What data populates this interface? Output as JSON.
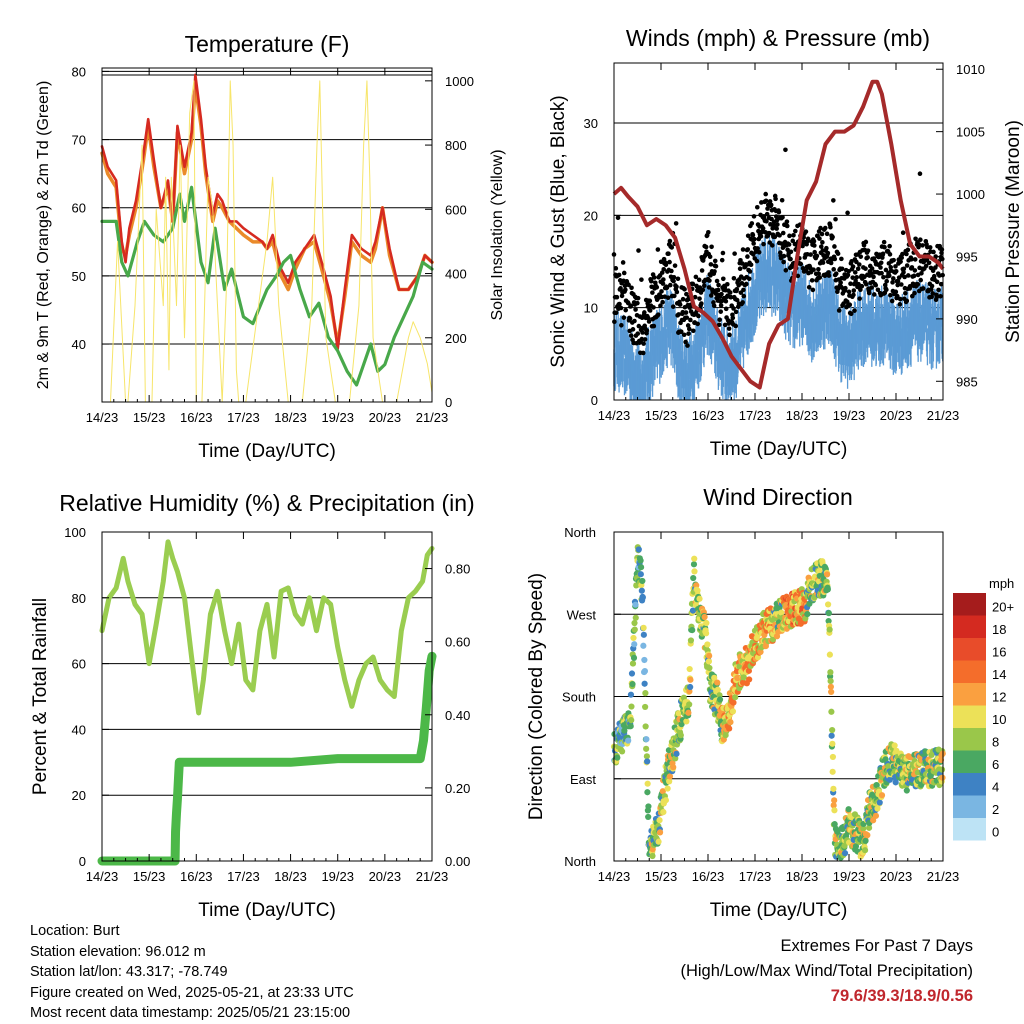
{
  "footer": {
    "location": "Location: Burt",
    "elevation": "Station elevation: 96.012 m",
    "latlon": "Station lat/lon: 43.317; -78.749",
    "created": "Figure created on Wed, 2025-05-21, at 23:33 UTC",
    "latest": "Most recent data timestamp: 2025/05/21 23:15:00"
  },
  "extremes": {
    "title": "Extremes For Past 7 Days",
    "subtitle": "(High/Low/Max Wind/Total Precipitation)",
    "values": "79.6/39.3/18.9/0.56",
    "value_color": "#c0272d"
  },
  "chart_data": [
    {
      "id": "temperature",
      "type": "line",
      "title": "Temperature (F)",
      "xlabel": "Time (Day/UTC)",
      "ylabel": "2m & 9m T (Red, Orange) & 2m Td (Green)",
      "y2label": "Solar Insolation (Yellow)",
      "x_ticks": [
        "14/23",
        "15/23",
        "16/23",
        "17/23",
        "18/23",
        "19/23",
        "20/23",
        "21/23"
      ],
      "xlim": [
        0,
        7
      ],
      "ylim": [
        31.5,
        80.5
      ],
      "y_ticks": [
        40,
        50,
        60,
        70,
        80
      ],
      "y2lim": [
        0,
        1040
      ],
      "y2_ticks": [
        0,
        200,
        400,
        600,
        800,
        1000
      ],
      "grid_y": [
        40,
        50,
        60,
        70,
        80
      ],
      "series": [
        {
          "color": "#ea8a2a",
          "width": 3.5,
          "x": [
            0,
            0.12,
            0.3,
            0.42,
            0.5,
            0.58,
            0.72,
            0.88,
            0.98,
            1.1,
            1.25,
            1.4,
            1.5,
            1.6,
            1.75,
            1.9,
            1.98,
            2.1,
            2.2,
            2.35,
            2.45,
            2.55,
            2.7,
            2.85,
            3.0,
            3.2,
            3.4,
            3.5,
            3.62,
            3.8,
            3.95,
            4.1,
            4.3,
            4.5,
            4.7,
            4.85,
            5.0,
            5.15,
            5.3,
            5.5,
            5.7,
            5.8,
            5.95,
            6.1,
            6.3,
            6.5,
            6.7,
            6.85,
            7.0
          ],
          "values": [
            68,
            65,
            63,
            54,
            53,
            56,
            60,
            67,
            72,
            66,
            60,
            63,
            58,
            71,
            65,
            70,
            78,
            72,
            65,
            58,
            61,
            60,
            58,
            57,
            56,
            55,
            55,
            54,
            55,
            50,
            48,
            51,
            54,
            55,
            50,
            46,
            40,
            47,
            55,
            53,
            52,
            54,
            60,
            53,
            48,
            48,
            50,
            53,
            52
          ]
        },
        {
          "color": "#d62a20",
          "width": 2.6,
          "x": [
            0,
            0.12,
            0.3,
            0.42,
            0.5,
            0.58,
            0.72,
            0.88,
            0.98,
            1.1,
            1.25,
            1.4,
            1.5,
            1.6,
            1.75,
            1.9,
            1.98,
            2.1,
            2.2,
            2.35,
            2.45,
            2.55,
            2.7,
            2.85,
            3.0,
            3.2,
            3.4,
            3.5,
            3.62,
            3.8,
            3.95,
            4.1,
            4.3,
            4.5,
            4.7,
            4.85,
            5.0,
            5.15,
            5.3,
            5.5,
            5.7,
            5.8,
            5.95,
            6.1,
            6.3,
            6.5,
            6.7,
            6.85,
            7.0
          ],
          "values": [
            69,
            66,
            64,
            55,
            52,
            57,
            61,
            68,
            73,
            67,
            60,
            64,
            58,
            72,
            66,
            71,
            79.5,
            73,
            66,
            59,
            62,
            61,
            58,
            58,
            57,
            56,
            55,
            54,
            56,
            51,
            49,
            52,
            54,
            56,
            51,
            47,
            39.3,
            48,
            56,
            54,
            53,
            55,
            60,
            54,
            48,
            48,
            50,
            53,
            52
          ]
        },
        {
          "color": "#48a84a",
          "width": 3.2,
          "x": [
            0,
            0.3,
            0.42,
            0.55,
            0.75,
            0.9,
            1.1,
            1.3,
            1.5,
            1.65,
            1.75,
            1.9,
            2.1,
            2.25,
            2.4,
            2.6,
            2.75,
            3.0,
            3.2,
            3.5,
            3.7,
            3.85,
            4.0,
            4.2,
            4.4,
            4.6,
            4.8,
            5.0,
            5.2,
            5.4,
            5.55,
            5.7,
            5.85,
            6.0,
            6.2,
            6.4,
            6.6,
            6.8,
            7.0
          ],
          "values": [
            58,
            58,
            52,
            50,
            55,
            58,
            56,
            55,
            57,
            62,
            58,
            63,
            52,
            49,
            57,
            48,
            51,
            44,
            43,
            48,
            50,
            52,
            53,
            48,
            44,
            46,
            41,
            39,
            36,
            34,
            37,
            40,
            36,
            37,
            41,
            44,
            47,
            52,
            51
          ]
        },
        {
          "color": "#f7e56a",
          "width": 1,
          "axis": "y2",
          "x": [
            0,
            0.05,
            0.18,
            0.33,
            0.5,
            0.55,
            0.7,
            0.85,
            0.92,
            1.0,
            1.02,
            1.06,
            1.15,
            1.3,
            1.35,
            1.42,
            1.47,
            1.58,
            1.66,
            1.75,
            1.86,
            1.95,
            2.0,
            2.06,
            2.12,
            2.25,
            2.35,
            2.55,
            2.65,
            2.72,
            2.78,
            2.85,
            2.9,
            3.05,
            3.32,
            3.5,
            3.62,
            3.75,
            3.95,
            4.25,
            4.45,
            4.56,
            4.62,
            4.68,
            4.75,
            4.95,
            5.25,
            5.45,
            5.55,
            5.62,
            5.68,
            5.75,
            5.95,
            6.25,
            6.5,
            6.6,
            6.75,
            6.9,
            7.0
          ],
          "values": [
            0,
            0,
            0,
            500,
            0,
            0,
            300,
            800,
            0,
            0,
            0,
            0,
            600,
            300,
            700,
            100,
            700,
            300,
            800,
            200,
            900,
            1000,
            0,
            0,
            0,
            700,
            600,
            0,
            400,
            1000,
            800,
            100,
            0,
            0,
            300,
            500,
            700,
            300,
            0,
            0,
            300,
            800,
            1000,
            600,
            200,
            0,
            0,
            300,
            800,
            1000,
            700,
            200,
            0,
            0,
            200,
            250,
            200,
            120,
            30
          ]
        }
      ]
    },
    {
      "id": "winds",
      "type": "scatter",
      "title": "Winds (mph) & Pressure (mb)",
      "xlabel": "Time (Day/UTC)",
      "ylabel": "Sonic Wind & Gust (Blue, Black)",
      "y2label": "Station Pressure (Maroon)",
      "x_ticks": [
        "14/23",
        "15/23",
        "16/23",
        "17/23",
        "18/23",
        "19/23",
        "20/23",
        "21/23"
      ],
      "xlim": [
        0,
        7
      ],
      "ylim": [
        0,
        36.5
      ],
      "y_ticks": [
        0,
        10,
        20,
        30
      ],
      "y2lim": [
        983.5,
        1010.5
      ],
      "y2_ticks": [
        985,
        990,
        995,
        1000,
        1005,
        1010
      ],
      "grid_y": [
        10,
        20,
        30
      ],
      "wind_mean_profile": {
        "x": [
          0,
          0.3,
          0.45,
          0.6,
          0.8,
          1.0,
          1.2,
          1.4,
          1.6,
          1.8,
          2.0,
          2.2,
          2.4,
          2.6,
          2.8,
          3.0,
          3.2,
          3.4,
          3.6,
          3.8,
          4.0,
          4.2,
          4.4,
          4.6,
          4.8,
          5.0,
          5.2,
          5.4,
          5.6,
          5.8,
          6.0,
          6.2,
          6.4,
          6.6,
          6.8,
          7.0
        ],
        "values": [
          6,
          5,
          3,
          2,
          5,
          7,
          9,
          4,
          3,
          6,
          10,
          6,
          4,
          5,
          9,
          12,
          14,
          14,
          12,
          10,
          11,
          9,
          10,
          11,
          7,
          6,
          8,
          9,
          8,
          9,
          7,
          8,
          9,
          9,
          8,
          9
        ]
      },
      "series": [
        {
          "name": "",
          "color": "#5b9bd5",
          "kind": "wind",
          "values": []
        },
        {
          "name": "",
          "color": "#000000",
          "kind": "gust",
          "values": []
        },
        {
          "color": "#a52a2a",
          "width": 4,
          "axis": "y2",
          "kind": "pressure",
          "x": [
            0,
            0.15,
            0.3,
            0.5,
            0.7,
            0.9,
            1.1,
            1.3,
            1.5,
            1.7,
            1.9,
            2.1,
            2.3,
            2.5,
            2.7,
            2.9,
            3.1,
            3.3,
            3.5,
            3.7,
            3.9,
            4.1,
            4.3,
            4.5,
            4.7,
            4.9,
            5.1,
            5.3,
            5.5,
            5.6,
            5.7,
            5.9,
            6.1,
            6.3,
            6.5,
            6.7,
            6.9,
            7.0
          ],
          "values": [
            1000,
            1000.5,
            999.8,
            999,
            997.5,
            998,
            997.5,
            996.5,
            994,
            991,
            990.5,
            989.8,
            988.5,
            987,
            986,
            985,
            984.5,
            988,
            989.5,
            990,
            995,
            999.5,
            1001,
            1004,
            1005,
            1005,
            1005.5,
            1007,
            1009,
            1009,
            1008,
            1004,
            999.5,
            996,
            995,
            995,
            994.5,
            994
          ]
        }
      ]
    },
    {
      "id": "humidity",
      "type": "line",
      "title": "Relative Humidity (%) & Precipitation (in)",
      "xlabel": "Time (Day/UTC)",
      "ylabel": "Percent & Total Rainfall",
      "x_ticks": [
        "14/23",
        "15/23",
        "16/23",
        "17/23",
        "18/23",
        "19/23",
        "20/23",
        "21/23"
      ],
      "xlim": [
        0,
        7
      ],
      "ylim": [
        0,
        100
      ],
      "y_ticks": [
        0,
        20,
        40,
        60,
        80,
        100
      ],
      "y2lim": [
        0,
        0.9
      ],
      "y2_ticks": [
        "0.00",
        "0.20",
        "0.40",
        "0.60",
        "0.80"
      ],
      "grid_y": [
        20,
        40,
        60,
        80
      ],
      "series": [
        {
          "color": "#9acd50",
          "width": 5,
          "x": [
            0,
            0.15,
            0.3,
            0.45,
            0.55,
            0.7,
            0.85,
            1.0,
            1.15,
            1.3,
            1.4,
            1.5,
            1.6,
            1.75,
            1.9,
            2.05,
            2.15,
            2.3,
            2.45,
            2.6,
            2.75,
            2.9,
            3.05,
            3.2,
            3.35,
            3.5,
            3.65,
            3.8,
            3.95,
            4.1,
            4.25,
            4.4,
            4.55,
            4.7,
            4.85,
            5.0,
            5.15,
            5.3,
            5.45,
            5.6,
            5.75,
            5.9,
            6.05,
            6.2,
            6.35,
            6.5,
            6.65,
            6.8,
            6.9,
            7.0
          ],
          "values": [
            70,
            80,
            83,
            92,
            85,
            78,
            75,
            60,
            72,
            85,
            97,
            92,
            88,
            80,
            62,
            45,
            55,
            75,
            82,
            70,
            60,
            72,
            55,
            52,
            70,
            78,
            62,
            82,
            83,
            75,
            72,
            80,
            70,
            80,
            78,
            65,
            55,
            47,
            55,
            60,
            62,
            55,
            52,
            50,
            70,
            80,
            82,
            85,
            93,
            95
          ]
        },
        {
          "color": "#4cb848",
          "width": 9,
          "axis": "y2",
          "x": [
            0,
            1.55,
            1.56,
            1.58,
            1.6,
            1.62,
            1.64,
            1.7,
            2.0,
            3.0,
            4.0,
            5.0,
            5.5,
            6.0,
            6.6,
            6.75,
            6.82,
            6.88,
            6.94,
            7.0
          ],
          "values": [
            0,
            0,
            0.08,
            0.13,
            0.17,
            0.22,
            0.27,
            0.27,
            0.27,
            0.27,
            0.27,
            0.28,
            0.28,
            0.28,
            0.28,
            0.28,
            0.33,
            0.42,
            0.52,
            0.56
          ]
        }
      ]
    },
    {
      "id": "direction",
      "type": "scatter",
      "title": "Wind Direction",
      "xlabel": "Time (Day/UTC)",
      "ylabel": "Direction (Colored By Speed)",
      "x_ticks": [
        "14/23",
        "15/23",
        "16/23",
        "17/23",
        "18/23",
        "19/23",
        "20/23",
        "21/23"
      ],
      "xlim": [
        0,
        7
      ],
      "ylim": [
        0,
        360
      ],
      "y_ticks": [
        "North",
        "East",
        "South",
        "West",
        "North"
      ],
      "grid_y": [
        90,
        180,
        270
      ],
      "legend_title": "mph",
      "legend_labels": [
        "20+",
        "18",
        "16",
        "14",
        "12",
        "10",
        "8",
        "6",
        "4",
        "2",
        "0"
      ],
      "legend_colors": [
        "#a51c1c",
        "#d42a20",
        "#e84c2a",
        "#f46d2b",
        "#faa040",
        "#ece158",
        "#9ac74a",
        "#4aa862",
        "#3e82c4",
        "#7ab6e2",
        "#bde3f5"
      ],
      "direction_profile": {
        "x": [
          0,
          0.1,
          0.25,
          0.35,
          0.5,
          0.6,
          0.75,
          0.85,
          0.95,
          1.05,
          1.15,
          1.3,
          1.45,
          1.6,
          1.7,
          1.8,
          1.95,
          2.05,
          2.2,
          2.3,
          2.45,
          2.6,
          2.7,
          2.85,
          3.0,
          3.15,
          3.35,
          3.5,
          3.7,
          3.9,
          4.05,
          4.2,
          4.4,
          4.55,
          4.7,
          4.8,
          5.0,
          5.15,
          5.3,
          5.45,
          5.6,
          5.75,
          5.9,
          6.1,
          6.3,
          6.5,
          6.7,
          6.9,
          7.0
        ],
        "values": [
          125,
          130,
          140,
          150,
          330,
          300,
          10,
          20,
          40,
          70,
          100,
          130,
          160,
          180,
          320,
          270,
          250,
          190,
          175,
          150,
          160,
          200,
          210,
          215,
          235,
          250,
          260,
          265,
          275,
          275,
          280,
          300,
          310,
          305,
          20,
          10,
          40,
          30,
          20,
          60,
          70,
          100,
          110,
          100,
          95,
          100,
          100,
          102,
          105
        ]
      },
      "series": []
    }
  ]
}
